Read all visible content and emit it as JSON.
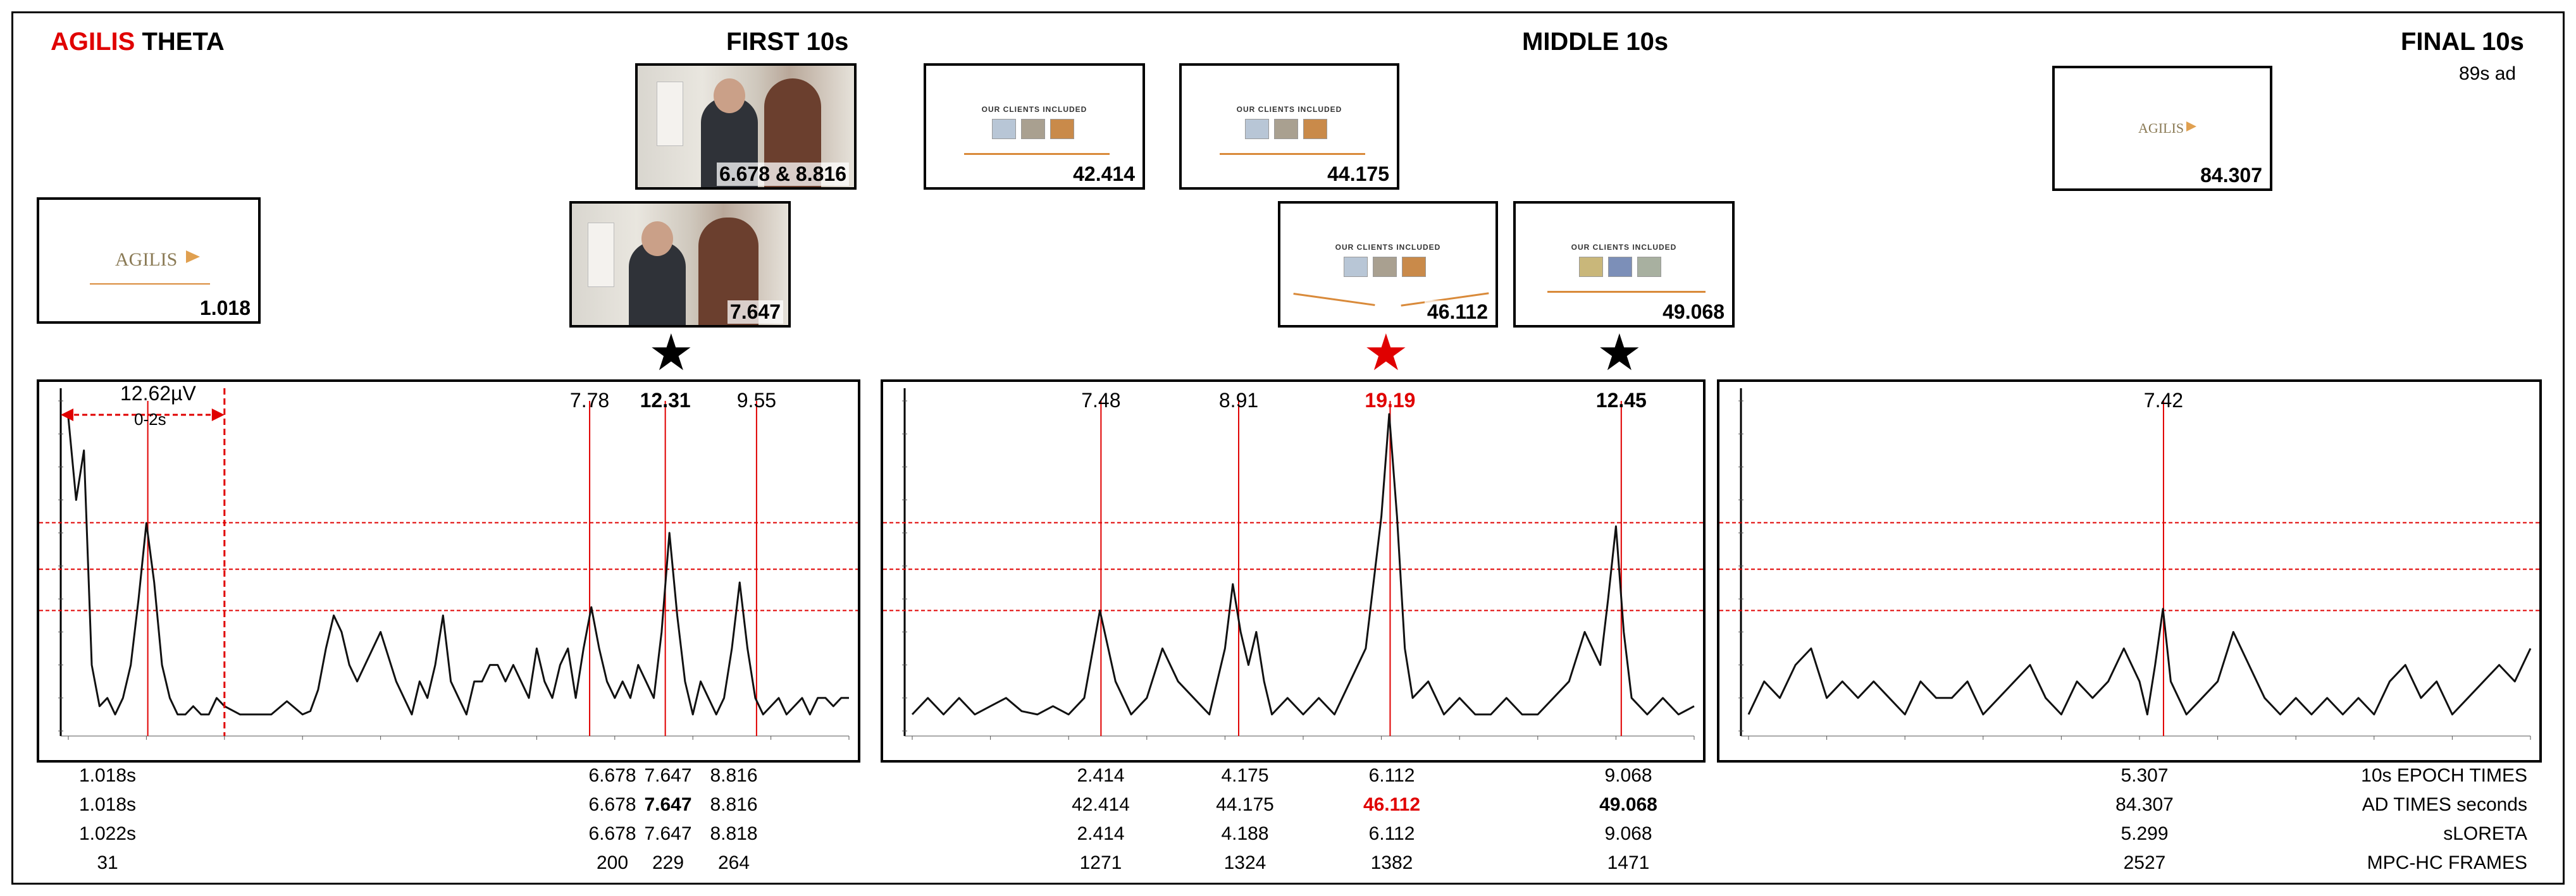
{
  "header": {
    "title_brand": "AGILIS",
    "title_rest": " THETA",
    "first_label": "FIRST 10s",
    "middle_label": "MIDDLE 10s",
    "final_label": "FINAL 10s",
    "ad_length": "89s ad"
  },
  "thumbnails": [
    {
      "label": "1.018",
      "kind": "logo",
      "text": "AGILIS"
    },
    {
      "label": "6.678 & 8.816",
      "kind": "photo"
    },
    {
      "label": "7.647",
      "kind": "photo"
    },
    {
      "label": "42.414",
      "kind": "clients",
      "text": "OUR CLIENTS INCLUDED"
    },
    {
      "label": "44.175",
      "kind": "clients",
      "text": "OUR CLIENTS INCLUDED"
    },
    {
      "label": "46.112",
      "kind": "clients",
      "text": "OUR CLIENTS INCLUDED"
    },
    {
      "label": "49.068",
      "kind": "clients",
      "text": "OUR CLIENTS INCLUDED"
    },
    {
      "label": "84.307",
      "kind": "logo",
      "text": "AGILIS"
    }
  ],
  "stars": [
    {
      "color": "#000000"
    },
    {
      "color": "#e00000"
    },
    {
      "color": "#000000"
    }
  ],
  "annotations": {
    "amplitude": "12.62µV",
    "window": "0-2s"
  },
  "chart_data": [
    {
      "type": "line",
      "name": "FIRST 10s",
      "xlim": [
        0,
        10
      ],
      "ylim": [
        0,
        20
      ],
      "threshold_lines": [
        12.62,
        9.8,
        7.3
      ],
      "peak_labels": [
        {
          "x": 6.678,
          "value": "7.78",
          "bold": false,
          "color": "#000000"
        },
        {
          "x": 7.647,
          "value": "12.31",
          "bold": true,
          "color": "#000000"
        },
        {
          "x": 8.816,
          "value": "9.55",
          "bold": false,
          "color": "#000000"
        }
      ],
      "marker_x": [
        1.018,
        6.678,
        7.647,
        8.816
      ],
      "x": [
        0,
        0.1,
        0.2,
        0.3,
        0.4,
        0.5,
        0.6,
        0.7,
        0.8,
        0.9,
        1.0,
        1.1,
        1.2,
        1.3,
        1.4,
        1.5,
        1.6,
        1.7,
        1.8,
        1.9,
        2.0,
        2.2,
        2.4,
        2.6,
        2.8,
        3.0,
        3.1,
        3.2,
        3.3,
        3.4,
        3.5,
        3.6,
        3.7,
        3.8,
        3.9,
        4.0,
        4.2,
        4.3,
        4.4,
        4.5,
        4.6,
        4.7,
        4.8,
        4.9,
        5.0,
        5.1,
        5.2,
        5.3,
        5.4,
        5.5,
        5.6,
        5.7,
        5.8,
        5.9,
        6.0,
        6.1,
        6.2,
        6.3,
        6.4,
        6.5,
        6.6,
        6.7,
        6.8,
        6.9,
        7.0,
        7.1,
        7.2,
        7.3,
        7.4,
        7.5,
        7.6,
        7.7,
        7.8,
        7.9,
        8.0,
        8.1,
        8.2,
        8.3,
        8.4,
        8.5,
        8.6,
        8.7,
        8.8,
        8.9,
        9.0,
        9.1,
        9.2,
        9.3,
        9.4,
        9.5,
        9.6,
        9.7,
        9.8,
        9.9,
        10.0
      ],
      "y": [
        19,
        14,
        17,
        4,
        1.5,
        2,
        1,
        2,
        4,
        8,
        12.6,
        9,
        4,
        2,
        1,
        1,
        1.5,
        1,
        1,
        2,
        1.5,
        1,
        1,
        1,
        1.8,
        1,
        1.2,
        2.5,
        5,
        7,
        6,
        4,
        3,
        4,
        5,
        6,
        3,
        2,
        1,
        3,
        2,
        4,
        7,
        3,
        2,
        1,
        3,
        3,
        4,
        4,
        3,
        4,
        3,
        2,
        5,
        3,
        2,
        4,
        5,
        2,
        5,
        7.5,
        5,
        3,
        2,
        3,
        2,
        4,
        3,
        2,
        6,
        12,
        7,
        3,
        1,
        3,
        2,
        1,
        2,
        5,
        9,
        5,
        2,
        1,
        1.5,
        2,
        1,
        1.5,
        2,
        1,
        2,
        2,
        1.5,
        2,
        2
      ]
    },
    {
      "type": "line",
      "name": "MIDDLE 10s",
      "xlim": [
        0,
        10
      ],
      "ylim": [
        0,
        20
      ],
      "threshold_lines": [
        12.62,
        9.8,
        7.3
      ],
      "peak_labels": [
        {
          "x": 2.414,
          "value": "7.48",
          "bold": false,
          "color": "#000000"
        },
        {
          "x": 4.175,
          "value": "8.91",
          "bold": false,
          "color": "#000000"
        },
        {
          "x": 6.112,
          "value": "19.19",
          "bold": true,
          "color": "#e00000"
        },
        {
          "x": 9.068,
          "value": "12.45",
          "bold": true,
          "color": "#000000"
        }
      ],
      "marker_x": [
        2.414,
        4.175,
        6.112,
        9.068
      ],
      "x": [
        0,
        0.2,
        0.4,
        0.6,
        0.8,
        1.0,
        1.2,
        1.4,
        1.6,
        1.8,
        2.0,
        2.2,
        2.4,
        2.6,
        2.8,
        3.0,
        3.2,
        3.4,
        3.6,
        3.8,
        4.0,
        4.1,
        4.2,
        4.3,
        4.4,
        4.5,
        4.6,
        4.8,
        5.0,
        5.2,
        5.4,
        5.6,
        5.8,
        6.0,
        6.1,
        6.2,
        6.3,
        6.4,
        6.6,
        6.8,
        7.0,
        7.2,
        7.4,
        7.6,
        7.8,
        8.0,
        8.2,
        8.4,
        8.6,
        8.8,
        8.9,
        9.0,
        9.1,
        9.2,
        9.4,
        9.6,
        9.8,
        10.0
      ],
      "y": [
        1,
        2,
        1,
        2,
        1,
        1.5,
        2,
        1.2,
        1,
        1.5,
        1,
        2,
        7.3,
        3,
        1,
        2,
        5,
        3,
        2,
        1,
        5,
        8.9,
        6,
        4,
        6,
        3,
        1,
        2,
        1,
        2,
        1,
        3,
        5,
        13,
        19.2,
        13,
        5,
        2,
        3,
        1,
        2,
        1,
        1,
        2,
        1,
        1,
        2,
        3,
        6,
        4,
        8,
        12.4,
        6,
        2,
        1,
        2,
        1,
        1.5
      ]
    },
    {
      "type": "line",
      "name": "FINAL 10s",
      "xlim": [
        0,
        10
      ],
      "ylim": [
        0,
        20
      ],
      "threshold_lines": [
        12.62,
        9.8,
        7.3
      ],
      "peak_labels": [
        {
          "x": 5.307,
          "value": "7.42",
          "bold": false,
          "color": "#000000"
        }
      ],
      "marker_x": [
        5.307
      ],
      "x": [
        0,
        0.2,
        0.4,
        0.6,
        0.8,
        1.0,
        1.2,
        1.4,
        1.6,
        1.8,
        2.0,
        2.2,
        2.4,
        2.6,
        2.8,
        3.0,
        3.2,
        3.4,
        3.6,
        3.8,
        4.0,
        4.2,
        4.4,
        4.6,
        4.8,
        5.0,
        5.1,
        5.2,
        5.3,
        5.4,
        5.5,
        5.6,
        5.8,
        6.0,
        6.2,
        6.4,
        6.6,
        6.8,
        7.0,
        7.2,
        7.4,
        7.6,
        7.8,
        8.0,
        8.2,
        8.4,
        8.6,
        8.8,
        9.0,
        9.2,
        9.4,
        9.6,
        9.8,
        10.0
      ],
      "y": [
        1,
        3,
        2,
        4,
        5,
        2,
        3,
        2,
        3,
        2,
        1,
        3,
        2,
        2,
        3,
        1,
        2,
        3,
        4,
        2,
        1,
        3,
        2,
        3,
        5,
        3,
        1,
        4,
        7.4,
        3,
        2,
        1,
        2,
        3,
        6,
        4,
        2,
        1,
        2,
        1,
        2,
        1,
        2,
        1,
        3,
        4,
        2,
        3,
        1,
        2,
        3,
        4,
        3,
        5
      ]
    }
  ],
  "table": {
    "row_labels": [
      "10s EPOCH TIMES",
      "AD TIMES seconds",
      "sLORETA",
      "MPC-HC FRAMES"
    ],
    "columns": [
      {
        "cells": [
          "1.018s",
          "1.018s",
          "1.022s",
          "31"
        ],
        "bold": [
          false,
          false,
          false,
          false
        ],
        "red": [
          false,
          false,
          false,
          false
        ]
      },
      {
        "cells": [
          "6.678",
          "6.678",
          "6.678",
          "200"
        ],
        "bold": [
          false,
          false,
          false,
          false
        ],
        "red": [
          false,
          false,
          false,
          false
        ]
      },
      {
        "cells": [
          "7.647",
          "7.647",
          "7.647",
          "229"
        ],
        "bold": [
          false,
          true,
          false,
          false
        ],
        "red": [
          false,
          false,
          false,
          false
        ]
      },
      {
        "cells": [
          "8.816",
          "8.816",
          "8.818",
          "264"
        ],
        "bold": [
          false,
          false,
          false,
          false
        ],
        "red": [
          false,
          false,
          false,
          false
        ]
      },
      {
        "cells": [
          "2.414",
          "42.414",
          "2.414",
          "1271"
        ],
        "bold": [
          false,
          false,
          false,
          false
        ],
        "red": [
          false,
          false,
          false,
          false
        ]
      },
      {
        "cells": [
          "4.175",
          "44.175",
          "4.188",
          "1324"
        ],
        "bold": [
          false,
          false,
          false,
          false
        ],
        "red": [
          false,
          false,
          false,
          false
        ]
      },
      {
        "cells": [
          "6.112",
          "46.112",
          "6.112",
          "1382"
        ],
        "bold": [
          false,
          true,
          false,
          false
        ],
        "red": [
          false,
          true,
          false,
          false
        ]
      },
      {
        "cells": [
          "9.068",
          "49.068",
          "9.068",
          "1471"
        ],
        "bold": [
          false,
          true,
          false,
          false
        ],
        "red": [
          false,
          false,
          false,
          false
        ]
      },
      {
        "cells": [
          "5.307",
          "84.307",
          "5.299",
          "2527"
        ],
        "bold": [
          false,
          false,
          false,
          false
        ],
        "red": [
          false,
          false,
          false,
          false
        ]
      }
    ]
  }
}
